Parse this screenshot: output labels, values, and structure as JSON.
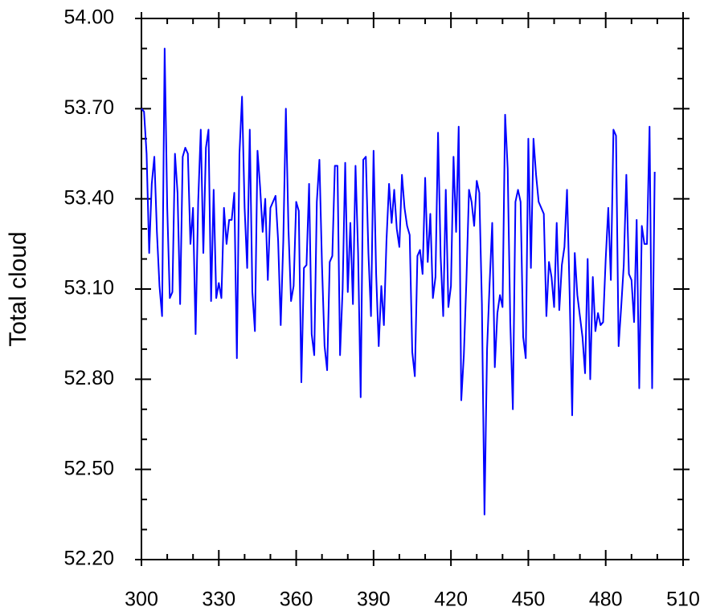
{
  "chart_data": {
    "type": "line",
    "y_label": "Total cloud",
    "color": "#0000ff",
    "xlim": [
      300,
      510
    ],
    "xticks": [
      300,
      330,
      360,
      390,
      420,
      450,
      480,
      510
    ],
    "xminorticks": [
      310,
      320,
      340,
      350,
      370,
      380,
      400,
      410,
      430,
      440,
      460,
      470,
      490,
      500
    ],
    "ylim": [
      52.2,
      54.0
    ],
    "yticks": [
      {
        "value": 52.2,
        "label": "52.20"
      },
      {
        "value": 52.5,
        "label": "52.50"
      },
      {
        "value": 52.8,
        "label": "52.80"
      },
      {
        "value": 53.1,
        "label": "53.10"
      },
      {
        "value": 53.4,
        "label": "53.40"
      },
      {
        "value": 53.7,
        "label": "53.70"
      },
      {
        "value": 54.0,
        "label": "54.00"
      }
    ],
    "yminorticks": [
      52.3,
      52.4,
      52.6,
      52.7,
      52.9,
      53.0,
      53.2,
      53.3,
      53.5,
      53.6,
      53.8,
      53.9
    ],
    "x": [
      300,
      301,
      302,
      303,
      304,
      305,
      306,
      307,
      308,
      309,
      310,
      311,
      312,
      313,
      314,
      315,
      316,
      317,
      318,
      319,
      320,
      321,
      322,
      323,
      324,
      325,
      326,
      327,
      328,
      329,
      330,
      331,
      332,
      333,
      334,
      335,
      336,
      337,
      338,
      339,
      340,
      341,
      342,
      343,
      344,
      345,
      346,
      347,
      348,
      349,
      350,
      351,
      352,
      353,
      354,
      355,
      356,
      357,
      358,
      359,
      360,
      361,
      362,
      363,
      364,
      365,
      366,
      367,
      368,
      369,
      370,
      371,
      372,
      373,
      374,
      375,
      376,
      377,
      378,
      379,
      380,
      381,
      382,
      383,
      384,
      385,
      386,
      387,
      388,
      389,
      390,
      391,
      392,
      393,
      394,
      395,
      396,
      397,
      398,
      399,
      400,
      401,
      402,
      403,
      404,
      405,
      406,
      407,
      408,
      409,
      410,
      411,
      412,
      413,
      414,
      415,
      416,
      417,
      418,
      419,
      420,
      421,
      422,
      423,
      424,
      425,
      426,
      427,
      428,
      429,
      430,
      431,
      432,
      433,
      434,
      435,
      436,
      437,
      438,
      439,
      440,
      441,
      442,
      443,
      444,
      445,
      446,
      447,
      448,
      449,
      450,
      451,
      452,
      453,
      454,
      455,
      456,
      457,
      458,
      459,
      460,
      461,
      462,
      463,
      464,
      465,
      466,
      467,
      468,
      469,
      470,
      471,
      472,
      473,
      474,
      475,
      476,
      477,
      478,
      479,
      480,
      481,
      482,
      483,
      484,
      485,
      486,
      487,
      488,
      489,
      490,
      491,
      492,
      493,
      494,
      495,
      496,
      497,
      498,
      499
    ],
    "values": [
      53.7,
      53.69,
      53.55,
      53.22,
      53.45,
      53.54,
      53.29,
      53.11,
      53.01,
      53.9,
      53.37,
      53.07,
      53.09,
      53.55,
      53.42,
      53.05,
      53.54,
      53.57,
      53.55,
      53.25,
      53.37,
      52.95,
      53.39,
      53.63,
      53.22,
      53.57,
      53.63,
      53.06,
      53.43,
      53.07,
      53.12,
      53.07,
      53.37,
      53.25,
      53.33,
      53.33,
      53.42,
      52.87,
      53.55,
      53.74,
      53.37,
      53.17,
      53.63,
      53.09,
      52.96,
      53.56,
      53.44,
      53.29,
      53.4,
      53.13,
      53.37,
      53.39,
      53.41,
      53.26,
      52.98,
      53.26,
      53.7,
      53.3,
      53.06,
      53.11,
      53.39,
      53.36,
      52.79,
      53.17,
      53.18,
      53.45,
      52.95,
      52.88,
      53.39,
      53.53,
      53.18,
      52.91,
      52.83,
      53.19,
      53.21,
      53.51,
      53.51,
      52.88,
      53.1,
      53.52,
      53.09,
      53.32,
      53.05,
      53.51,
      53.22,
      52.74,
      53.53,
      53.54,
      53.22,
      53.01,
      53.56,
      53.15,
      52.91,
      53.11,
      52.98,
      53.26,
      53.45,
      53.32,
      53.43,
      53.3,
      53.24,
      53.48,
      53.37,
      53.31,
      53.28,
      52.89,
      52.81,
      53.21,
      53.23,
      53.15,
      53.47,
      53.19,
      53.35,
      53.07,
      53.14,
      53.62,
      53.21,
      53.01,
      53.43,
      53.04,
      53.11,
      53.54,
      53.29,
      53.64,
      52.73,
      52.88,
      53.13,
      53.43,
      53.39,
      53.31,
      53.46,
      53.42,
      53.05,
      52.35,
      52.9,
      53.12,
      53.32,
      52.84,
      53.02,
      53.08,
      53.04,
      53.68,
      53.5,
      52.99,
      52.7,
      53.39,
      53.43,
      53.39,
      52.94,
      52.87,
      53.6,
      53.17,
      53.6,
      53.48,
      53.39,
      53.37,
      53.35,
      53.01,
      53.19,
      53.14,
      53.04,
      53.32,
      53.03,
      53.18,
      53.24,
      53.43,
      53.09,
      52.68,
      53.22,
      53.08,
      53.01,
      52.94,
      52.82,
      53.2,
      52.8,
      53.14,
      52.96,
      53.02,
      52.98,
      52.99,
      53.2,
      53.37,
      53.13,
      53.63,
      53.61,
      52.91,
      53.04,
      53.18,
      53.48,
      53.15,
      53.13,
      52.99,
      53.33,
      52.77,
      53.31,
      53.25,
      53.25,
      53.64,
      52.77,
      53.49
    ]
  }
}
